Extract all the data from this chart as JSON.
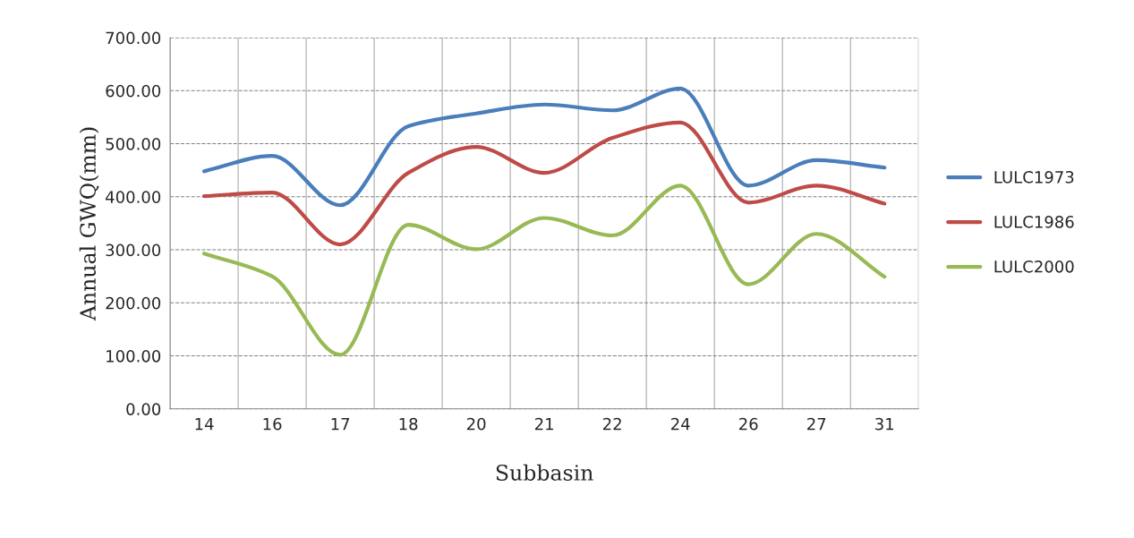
{
  "chart_data": {
    "type": "line",
    "xlabel": "Subbasin",
    "ylabel": "Annual GWQ(mm)",
    "categories": [
      "14",
      "16",
      "17",
      "18",
      "20",
      "21",
      "22",
      "24",
      "26",
      "27",
      "31"
    ],
    "series": [
      {
        "name": "LULC1973",
        "color": "#4a7ebb",
        "values": [
          448,
          477,
          384,
          533,
          557,
          574,
          563,
          604,
          421,
          469,
          455
        ]
      },
      {
        "name": "LULC1986",
        "color": "#be4b48",
        "values": [
          401,
          408,
          310,
          445,
          494,
          445,
          511,
          540,
          389,
          421,
          387
        ]
      },
      {
        "name": "LULC2000",
        "color": "#98b954",
        "values": [
          293,
          250,
          102,
          347,
          301,
          360,
          327,
          421,
          235,
          330,
          249
        ]
      }
    ],
    "ylim": [
      0,
      700
    ],
    "yticks": [
      {
        "value": 0,
        "label": "0.00"
      },
      {
        "value": 100,
        "label": "100.00"
      },
      {
        "value": 200,
        "label": "200.00"
      },
      {
        "value": 300,
        "label": "300.00"
      },
      {
        "value": 400,
        "label": "400.00"
      },
      {
        "value": 500,
        "label": "500.00"
      },
      {
        "value": 600,
        "label": "600.00"
      },
      {
        "value": 700,
        "label": "700.00"
      }
    ],
    "grid": true,
    "legend": "right",
    "marker": "none",
    "line_style": "solid"
  }
}
